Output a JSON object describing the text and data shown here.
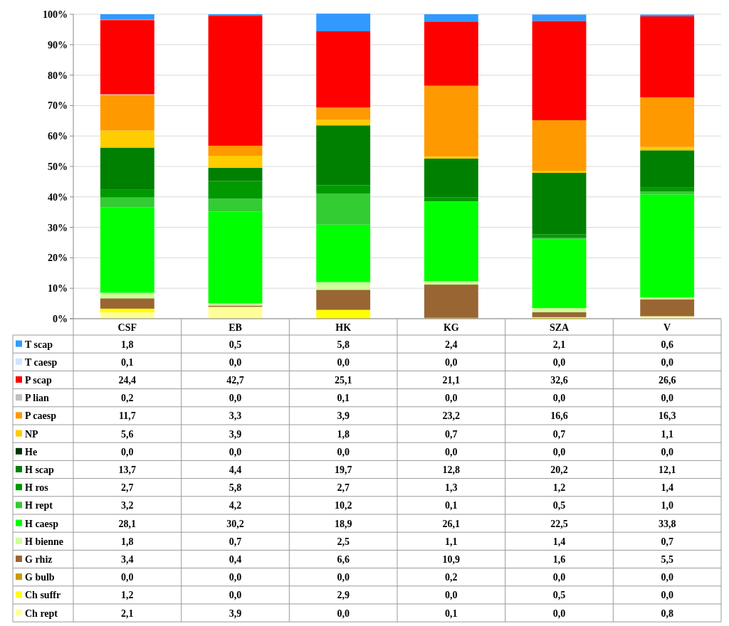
{
  "chart_data": {
    "type": "bar",
    "stacked": true,
    "categories": [
      "CSF",
      "EB",
      "HK",
      "KG",
      "SZA",
      "V"
    ],
    "ylim": [
      0,
      100
    ],
    "yticks": [
      {
        "value": 0,
        "label": "0%"
      },
      {
        "value": 10,
        "label": "10%"
      },
      {
        "value": 20,
        "label": "20%"
      },
      {
        "value": 30,
        "label": "30%"
      },
      {
        "value": 40,
        "label": "40%"
      },
      {
        "value": 50,
        "label": "50%"
      },
      {
        "value": 60,
        "label": "60%"
      },
      {
        "value": 70,
        "label": "70%"
      },
      {
        "value": 80,
        "label": "80%"
      },
      {
        "value": 90,
        "label": "90%"
      },
      {
        "value": 100,
        "label": "100%"
      }
    ],
    "grid": "y",
    "legend": "left",
    "series": [
      {
        "name": "Ch rept",
        "color": "#ffff99",
        "values": [
          2.1,
          3.9,
          0.0,
          0.1,
          0.0,
          0.8
        ],
        "value_labels": [
          "2,1",
          "3,9",
          "0,0",
          "0,1",
          "0,0",
          "0,8"
        ]
      },
      {
        "name": "Ch suffr",
        "color": "#ffff00",
        "values": [
          1.2,
          0.0,
          2.9,
          0.0,
          0.5,
          0.0
        ],
        "value_labels": [
          "1,2",
          "0,0",
          "2,9",
          "0,0",
          "0,5",
          "0,0"
        ]
      },
      {
        "name": "G bulb",
        "color": "#cc9900",
        "values": [
          0.0,
          0.0,
          0.0,
          0.2,
          0.0,
          0.0
        ],
        "value_labels": [
          "0,0",
          "0,0",
          "0,0",
          "0,2",
          "0,0",
          "0,0"
        ]
      },
      {
        "name": "G rhiz",
        "color": "#996633",
        "values": [
          3.4,
          0.4,
          6.6,
          10.9,
          1.6,
          5.5
        ],
        "value_labels": [
          "3,4",
          "0,4",
          "6,6",
          "10,9",
          "1,6",
          "5,5"
        ]
      },
      {
        "name": "H bienne",
        "color": "#ccff99",
        "values": [
          1.8,
          0.7,
          2.5,
          1.1,
          1.4,
          0.7
        ],
        "value_labels": [
          "1,8",
          "0,7",
          "2,5",
          "1,1",
          "1,4",
          "0,7"
        ]
      },
      {
        "name": "H caesp",
        "color": "#00ff00",
        "values": [
          28.1,
          30.2,
          18.9,
          26.1,
          22.5,
          33.8
        ],
        "value_labels": [
          "28,1",
          "30,2",
          "18,9",
          "26,1",
          "22,5",
          "33,8"
        ]
      },
      {
        "name": "H rept",
        "color": "#33cc33",
        "values": [
          3.2,
          4.2,
          10.2,
          0.1,
          0.5,
          1.0
        ],
        "value_labels": [
          "3,2",
          "4,2",
          "10,2",
          "0,1",
          "0,5",
          "1,0"
        ]
      },
      {
        "name": "H ros",
        "color": "#009900",
        "values": [
          2.7,
          5.8,
          2.7,
          1.3,
          1.2,
          1.4
        ],
        "value_labels": [
          "2,7",
          "5,8",
          "2,7",
          "1,3",
          "1,2",
          "1,4"
        ]
      },
      {
        "name": "H scap",
        "color": "#008000",
        "values": [
          13.7,
          4.4,
          19.7,
          12.8,
          20.2,
          12.1
        ],
        "value_labels": [
          "13,7",
          "4,4",
          "19,7",
          "12,8",
          "20,2",
          "12,1"
        ]
      },
      {
        "name": "He",
        "color": "#003300",
        "values": [
          0.0,
          0.0,
          0.0,
          0.0,
          0.0,
          0.0
        ],
        "value_labels": [
          "0,0",
          "0,0",
          "0,0",
          "0,0",
          "0,0",
          "0,0"
        ]
      },
      {
        "name": "NP",
        "color": "#ffcc00",
        "values": [
          5.6,
          3.9,
          1.8,
          0.7,
          0.7,
          1.1
        ],
        "value_labels": [
          "5,6",
          "3,9",
          "1,8",
          "0,7",
          "0,7",
          "1,1"
        ]
      },
      {
        "name": "P caesp",
        "color": "#ff9900",
        "values": [
          11.7,
          3.3,
          3.9,
          23.2,
          16.6,
          16.3
        ],
        "value_labels": [
          "11,7",
          "3,3",
          "3,9",
          "23,2",
          "16,6",
          "16,3"
        ]
      },
      {
        "name": "P lian",
        "color": "#c0c0c0",
        "values": [
          0.2,
          0.0,
          0.1,
          0.0,
          0.0,
          0.0
        ],
        "value_labels": [
          "0,2",
          "0,0",
          "0,1",
          "0,0",
          "0,0",
          "0,0"
        ]
      },
      {
        "name": "P scap",
        "color": "#ff0000",
        "values": [
          24.4,
          42.7,
          25.1,
          21.1,
          32.6,
          26.6
        ],
        "value_labels": [
          "24,4",
          "42,7",
          "25,1",
          "21,1",
          "32,6",
          "26,6"
        ]
      },
      {
        "name": "T caesp",
        "color": "#cce6ff",
        "values": [
          0.1,
          0.0,
          0.0,
          0.0,
          0.0,
          0.0
        ],
        "value_labels": [
          "0,1",
          "0,0",
          "0,0",
          "0,0",
          "0,0",
          "0,0"
        ]
      },
      {
        "name": "T scap",
        "color": "#3399ff",
        "values": [
          1.8,
          0.5,
          5.8,
          2.4,
          2.1,
          0.6
        ],
        "value_labels": [
          "1,8",
          "0,5",
          "5,8",
          "2,4",
          "2,1",
          "0,6"
        ]
      }
    ]
  }
}
